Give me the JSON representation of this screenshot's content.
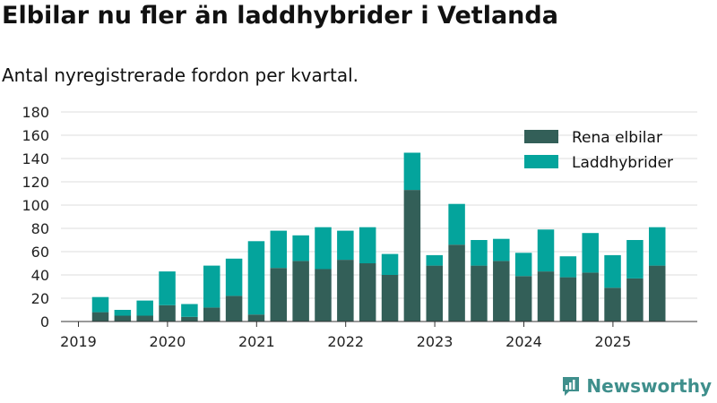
{
  "title": "Elbilar nu fler än laddhybrider i Vetlanda",
  "subtitle": "Antal nyregistrerade fordon per kvartal.",
  "brand": {
    "name": "Newsworthy",
    "logo_icon": "newsworthy-chart-logo"
  },
  "colors": {
    "electric": "#335f58",
    "hybrid": "#04a49c",
    "grid": "#dddddd",
    "axis": "#333333",
    "brand": "#3f8f8c"
  },
  "chart_data": {
    "type": "bar",
    "stacked": true,
    "title": "Elbilar nu fler än laddhybrider i Vetlanda",
    "subtitle": "Antal nyregistrerade fordon per kvartal.",
    "xlabel": "",
    "ylabel": "",
    "ylim": [
      0,
      180
    ],
    "yticks": [
      0,
      20,
      40,
      60,
      80,
      100,
      120,
      140,
      160,
      180
    ],
    "grid": true,
    "legend": "top-right",
    "xaxis_labels": [
      "2019",
      "2020",
      "2021",
      "2022",
      "2023",
      "2024",
      "2025"
    ],
    "categories": [
      "2019 Q2",
      "2019 Q3",
      "2019 Q4",
      "2020 Q1",
      "2020 Q2",
      "2020 Q3",
      "2020 Q4",
      "2021 Q1",
      "2021 Q2",
      "2021 Q3",
      "2021 Q4",
      "2022 Q1",
      "2022 Q2",
      "2022 Q3",
      "2022 Q4",
      "2023 Q1",
      "2023 Q2",
      "2023 Q3",
      "2023 Q4",
      "2024 Q1",
      "2024 Q2",
      "2024 Q3",
      "2024 Q4",
      "2025 Q1",
      "2025 Q2",
      "2025 Q3"
    ],
    "series": [
      {
        "name": "Rena elbilar",
        "color": "#335f58",
        "values": [
          8,
          5,
          5,
          14,
          4,
          12,
          22,
          6,
          46,
          52,
          45,
          53,
          50,
          40,
          113,
          48,
          66,
          48,
          52,
          39,
          43,
          38,
          42,
          29,
          37,
          48
        ]
      },
      {
        "name": "Laddhybrider",
        "color": "#04a49c",
        "values": [
          13,
          5,
          13,
          29,
          11,
          36,
          32,
          63,
          32,
          22,
          36,
          25,
          31,
          18,
          32,
          9,
          35,
          22,
          19,
          20,
          36,
          18,
          34,
          28,
          33,
          33
        ]
      }
    ]
  }
}
